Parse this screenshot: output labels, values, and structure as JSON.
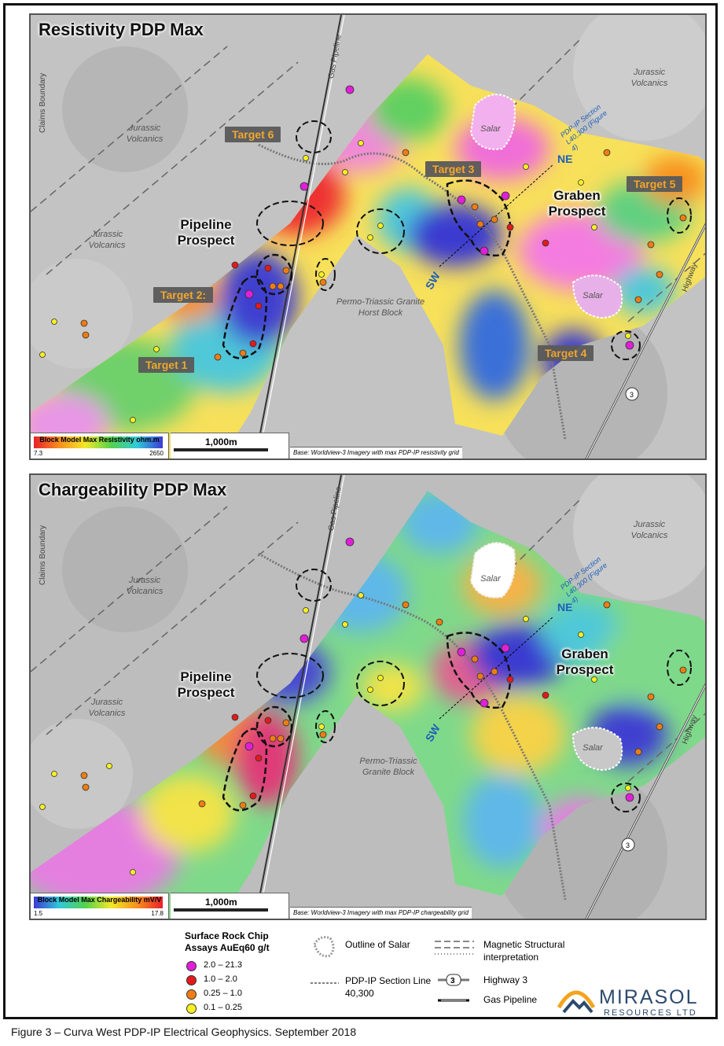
{
  "panels": [
    {
      "title": "Resistivity PDP Max",
      "targets": [
        "Target 6",
        "Target 3",
        "Target 5",
        "Target 2:",
        "Target 1",
        "Target 4"
      ],
      "prospects": {
        "pipeline": "Pipeline Prospect",
        "graben": "Graben Prospect"
      },
      "labels": {
        "jv1": "Jurassic Volcanics",
        "jv2": "Jurassic Volcanics",
        "jv3": "Jurassic Volcanics",
        "granite": "Permo-Triassic Granite Horst Block",
        "salar1": "Salar",
        "salar2": "Salar",
        "claims": "Claims Boundary",
        "gas": "Gas Pipeline",
        "highway": "Highway"
      },
      "section": {
        "ne": "NE",
        "sw": "SW",
        "note": "PDP-IP Section L40,300 (Figure 4)"
      },
      "colorbar": {
        "title": "Block Model Max Resistivity ohm.m",
        "min": "7.3",
        "max": "2650",
        "colors": [
          "#e8212a",
          "#f7901e",
          "#f3e82a",
          "#54d14d",
          "#31c9d8",
          "#3b3bd6"
        ]
      },
      "scale": "1,000m",
      "base": "Base: Worldview-3 Imagery with max PDP-IP resistivity grid"
    },
    {
      "title": "Chargeability PDP Max",
      "prospects": {
        "pipeline": "Pipeline Prospect",
        "graben": "Graben Prospect"
      },
      "labels": {
        "jv1": "Jurassic Volcanics",
        "jv2": "Jurassic Volcanics",
        "jv3": "Jurassic Volcanics",
        "granite": "Permo-Triassic Granite Block",
        "salar1": "Salar",
        "salar2": "Salar",
        "claims": "Claims Boundary",
        "gas": "Gas Pipeline",
        "highway": "Highway"
      },
      "section": {
        "ne": "NE",
        "sw": "SW",
        "note": "PDP-IP Section L40,300 (Figure 4)"
      },
      "colorbar": {
        "title": "Block Model Max Chargeability mV/V",
        "min": "1.5",
        "max": "17.8",
        "colors": [
          "#3b3bd6",
          "#31c9d8",
          "#54d14d",
          "#f3e82a",
          "#f7901e",
          "#e8212a"
        ]
      },
      "scale": "1,000m",
      "base": "Base: Worldview-3 Imagery with max PDP-IP chargeability grid"
    }
  ],
  "legend": {
    "assay_title": "Surface Rock Chip Assays AuEq60 g/t",
    "assay_classes": [
      {
        "range": "2.0   – 21.3",
        "color": "#e01fd8"
      },
      {
        "range": "1.0   – 2.0",
        "color": "#e31a1a"
      },
      {
        "range": "0.25 – 1.0",
        "color": "#ef7d12"
      },
      {
        "range": "0.1   – 0.25",
        "color": "#f6f020"
      }
    ],
    "salar": "Outline of Salar",
    "section": "PDP-IP Section Line 40,300",
    "magnetic": "Magnetic Structural interpretation",
    "highway": "Highway 3",
    "highway_num": "3",
    "pipeline": "Gas Pipeline"
  },
  "logo": {
    "name": "MIRASOL",
    "sub": "RESOURCES LTD"
  },
  "caption": "Figure 3 – Curva West PDP-IP Electrical Geophysics. September 2018"
}
